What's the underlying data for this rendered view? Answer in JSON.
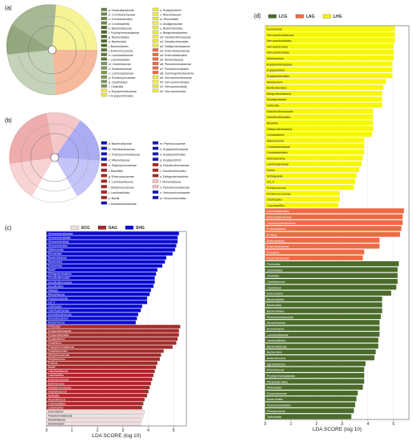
{
  "panels": {
    "a": {
      "label": "(a)",
      "legend_col1": [
        "a: Nocardiopsaceae",
        "b: Corrobacteriaceae",
        "c: Coriobacteriales",
        "d: Coriobacteriia",
        "e: Bacteroidaceae",
        "f: Porphyromonadaceae",
        "g: Bacteroidales",
        "h: Bacteroidia",
        "i: Bacteroidetes",
        "j: Enterococcaceae",
        "k: Lactobacillaceae",
        "l: Lactobacillales",
        "m: Clostridiaceae",
        "n: Eubacteriaceae",
        "o: Lachnospiraceae",
        "p: Ruminococcaceae",
        "q: Clostridiales",
        "r: Clostridia",
        "s: Erysipelotrichaceae",
        "t: Erysipelotrichales"
      ],
      "legend_col2": [
        "u: Erysipelotrichi",
        "v: Rikenellaceae",
        "w: Rhizobiales",
        "x: Alcaligenaceae",
        "y: Burkholderiales",
        "z: Betaproteobacteria",
        "a0: Desulfovibrionaceae",
        "a1: Desulfovibrionales",
        "a2: Deltaproteobacteria",
        "a3: Enterobacteriaceae",
        "a4: Enterobacteriales",
        "a5: Moraxellaceae",
        "a6: Pseudomonadaceae",
        "a7: Pseudomonadales",
        "a8: Gammaproteobacteria",
        "a9: Verrucomicrobiaceae",
        "b0: Verrucomicrobiales",
        "b1: Verrucomicrobiae",
        "b2: Verrucomicrobia",
        ""
      ]
    },
    "b": {
      "label": "(b)",
      "legend_col1": [
        "a: Bacteroidaceae",
        "b: Odoribacteraceae",
        "c: Porphyromonadaceae",
        "d: Rikenellaceae",
        "e: Staphylococcaceae",
        "f: Bacillales",
        "g: Enterococcaceae",
        "h: Lactobacillaceae",
        "i: Streptococcaceae",
        "j: Lactobacillales",
        "k: Bacilli",
        "l: Dehalobacteriaceae"
      ],
      "legend_col2": [
        "m: Peptococcaceae",
        "n: Erysipelotrichaceae",
        "o: Erysipelotrichales",
        "p: Erysipelotrichi",
        "q: Desulfovibrionaceae",
        "r: Desulfovibrionales",
        "s: Deltaproteobacteria",
        "t: Moraxellaceae",
        "u: Pseudomonadaceae",
        "v: Verrucomicrobiaceae",
        "w: Verrucomicrobiae",
        ""
      ]
    },
    "c": {
      "label": "(c)"
    },
    "d": {
      "label": "(d)"
    }
  },
  "chart_data": [
    {
      "type": "bar",
      "orientation": "horizontal",
      "panel": "c",
      "xlabel": "LDA SCORE (log 10)",
      "xlim": [
        0,
        5.5
      ],
      "xticks": [
        "0",
        "1",
        "2",
        "3",
        "4",
        "5"
      ],
      "legend": [
        "SCG",
        "SAG",
        "SHG"
      ],
      "colors": {
        "SCG": "#f2dede",
        "SAG": "#a52a2a",
        "SHG": "#0a0ad0"
      },
      "series": [
        {
          "name": "SHG",
          "categories": [
            "Verrucomicrobiaceae",
            "Verrucomicrobiales",
            "Verrucomicrobiae",
            "Verrucomicrobia",
            "Akkermansia",
            "Rhizobiales",
            "Bacteroidaceae",
            "Bacteroides",
            "Escherichia",
            "Bacilli",
            "Deltaproteobacteria",
            "Desulfovibrionales",
            "Desulfovibrionaceae",
            "Desulfovibrio",
            "Alistipes",
            "Rikenellaceae",
            "Peptococcaceae",
            "rc4_4",
            "Odoribacter",
            "Odoribacteraceae",
            "Dehalobacteriaceae",
            "Dehalobacterium",
            "Butyricimonas"
          ],
          "values": [
            5.2,
            5.15,
            5.15,
            5.1,
            5.05,
            4.95,
            4.7,
            4.65,
            4.55,
            4.35,
            4.3,
            4.25,
            4.25,
            4.2,
            4.1,
            4.05,
            3.95,
            3.95,
            3.75,
            3.7,
            3.6,
            3.55,
            3.5
          ]
        },
        {
          "name": "SAG",
          "categories": [
            "Firmicutes",
            "Erysipelotrichaceae",
            "Erysipelotrichales",
            "Erysipelotrichi",
            "Clostridium",
            "Porphyromonadaceae",
            "Parabacteroides",
            "Streptococcaceae",
            "Streptococcus",
            "Proteus",
            "Bacilli",
            "Lactobacillaceae",
            "Lactobacillus",
            "Enterococcaceae",
            "Enterococcus",
            "Staphylococcaceae",
            "Staphylococcus",
            "Bacillales",
            "Anaerotruncus",
            "Lactobacillales",
            "Lactobacillus"
          ],
          "values": [
            5.25,
            5.2,
            5.2,
            5.15,
            5.1,
            4.95,
            4.6,
            4.5,
            4.45,
            4.35,
            4.3,
            4.25,
            4.2,
            4.15,
            4.1,
            4.05,
            4.0,
            3.95,
            3.85,
            3.8,
            3.75
          ]
        },
        {
          "name": "SCG",
          "categories": [
            "Enterobacter",
            "Pseudomonadaceae",
            "Moraxellaceae",
            "Acinetobacter"
          ],
          "values": [
            3.85,
            3.8,
            3.75,
            3.7
          ]
        }
      ]
    },
    {
      "type": "bar",
      "orientation": "horizontal",
      "panel": "d",
      "xlabel": "LDA SCORE (log 10)",
      "xlim": [
        0,
        5.6
      ],
      "xticks": [
        "0",
        "1",
        "2",
        "3",
        "4",
        "5"
      ],
      "legend": [
        "LCG",
        "LAG",
        "LHG"
      ],
      "colors": {
        "LCG": "#4a6b2a",
        "LAG": "#ee6a45",
        "LHG": "#f7f700"
      },
      "series": [
        {
          "name": "LHG",
          "categories": [
            "Escherichia",
            "Verrucomicrobiaceae",
            "Verrucomicrobiales",
            "Verrucomicrobia",
            "Verrucomicrobiae",
            "Akkermansia",
            "Erysipelotrichaceae",
            "Erysipelotrichi",
            "Erysipelotrichales",
            "Allobaculum",
            "Burkholderiales",
            "Betaproteobacteria",
            "Alcaligenaceae",
            "Sutterella",
            "Desulfovibrionaceae",
            "Desulfovibrionales",
            "Bilophila",
            "Deltaproteobacteria",
            "Coriobacteria",
            "Adlercreutzia",
            "Coriobacteriaceae",
            "Coriobacteriales",
            "Actinobacteria",
            "Lachnospiraceae",
            "Dorea",
            "Schlegelella",
            "rc4_4",
            "Ruminococcus",
            "Ruminococcaceae",
            "Oscillospira",
            "Coprobacillus"
          ],
          "values": [
            5.05,
            5.05,
            5.05,
            5.0,
            5.0,
            5.0,
            4.95,
            4.95,
            4.95,
            4.7,
            4.6,
            4.55,
            4.55,
            4.55,
            4.2,
            4.2,
            4.2,
            4.2,
            4.15,
            3.85,
            3.85,
            3.85,
            3.8,
            3.75,
            3.65,
            3.55,
            3.5,
            3.45,
            2.9,
            2.9,
            2.85
          ]
        },
        {
          "name": "LAG",
          "categories": [
            "Enterobacteriales",
            "Enterobacteriaceae",
            "Gammaproteobacteria",
            "Proteobacteria",
            "Proteus",
            "Enterococcus",
            "Enterococcaceae",
            "Prauseria",
            "Nocardiopsaceae"
          ],
          "values": [
            5.4,
            5.35,
            5.35,
            5.3,
            5.25,
            4.45,
            4.45,
            3.85,
            3.8
          ]
        },
        {
          "name": "LCG",
          "categories": [
            "Firmicutes",
            "Clostridiales",
            "Clostridia",
            "Clostridiaceae",
            "Clostridium",
            "Enterobacter",
            "Bacteroidetes",
            "Bacteroidia",
            "Bacteroidales",
            "Pseudomonadaceae",
            "Moraxellaceae",
            "Acinetobacter",
            "Lactobacillaceae",
            "Lactobacillales",
            "Bacteroidaceae",
            "Bacteroides",
            "Anaerotruncus",
            "Agrobacterium",
            "Rhizobiaceae",
            "Porphyromonadaceae",
            "Parabacteroides",
            "Rhizobiales",
            "Eubacteriaceae",
            "Anaerofustis",
            "Pseudomonadales",
            "Pseudomonas",
            "Trabulsiella"
          ],
          "values": [
            5.2,
            5.15,
            5.15,
            5.15,
            5.1,
            4.9,
            4.55,
            4.55,
            4.55,
            4.5,
            4.45,
            4.45,
            4.45,
            4.4,
            4.4,
            4.3,
            4.25,
            3.9,
            3.85,
            3.85,
            3.85,
            3.8,
            3.6,
            3.55,
            3.5,
            3.45,
            3.35
          ]
        }
      ]
    }
  ]
}
